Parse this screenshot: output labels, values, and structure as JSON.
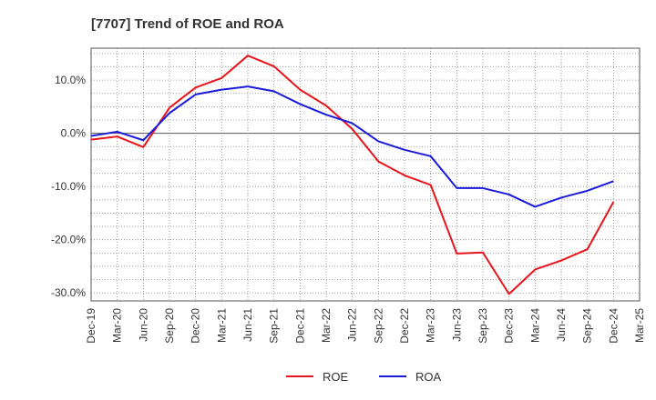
{
  "chart_data": {
    "type": "line",
    "title": "[7707]  Trend of ROE and ROA",
    "xlabel": "",
    "ylabel": "",
    "x": [
      "Dec-19",
      "Mar-20",
      "Jun-20",
      "Sep-20",
      "Dec-20",
      "Mar-21",
      "Jun-21",
      "Sep-21",
      "Dec-21",
      "Mar-22",
      "Jun-22",
      "Sep-22",
      "Dec-22",
      "Mar-23",
      "Jun-23",
      "Sep-23",
      "Dec-23",
      "Mar-24",
      "Jun-24",
      "Sep-24",
      "Dec-24",
      "Mar-25"
    ],
    "ylim": [
      -31.5,
      16
    ],
    "yticks": [
      10,
      0,
      -10,
      -20,
      -30
    ],
    "ytick_labels": [
      "10.0%",
      "0.0%",
      "-10.0%",
      "-20.0%",
      "-30.0%"
    ],
    "grid": true,
    "legend_position": "bottom",
    "series": [
      {
        "name": "ROE",
        "color": "#e8141b",
        "values": [
          -1.2,
          -0.6,
          -2.6,
          4.8,
          8.6,
          10.4,
          14.6,
          12.6,
          8.2,
          5.2,
          0.8,
          -5.3,
          -7.9,
          -9.7,
          -22.6,
          -22.4,
          -30.2,
          -25.6,
          -23.9,
          -21.8,
          -12.9,
          null
        ]
      },
      {
        "name": "ROA",
        "color": "#1a1adb",
        "values": [
          -0.5,
          0.3,
          -1.3,
          3.8,
          7.3,
          8.2,
          8.8,
          7.9,
          5.5,
          3.5,
          1.9,
          -1.5,
          -3.1,
          -4.3,
          -10.3,
          -10.3,
          -11.5,
          -13.8,
          -12.1,
          -10.8,
          -9.0,
          null
        ]
      }
    ]
  }
}
